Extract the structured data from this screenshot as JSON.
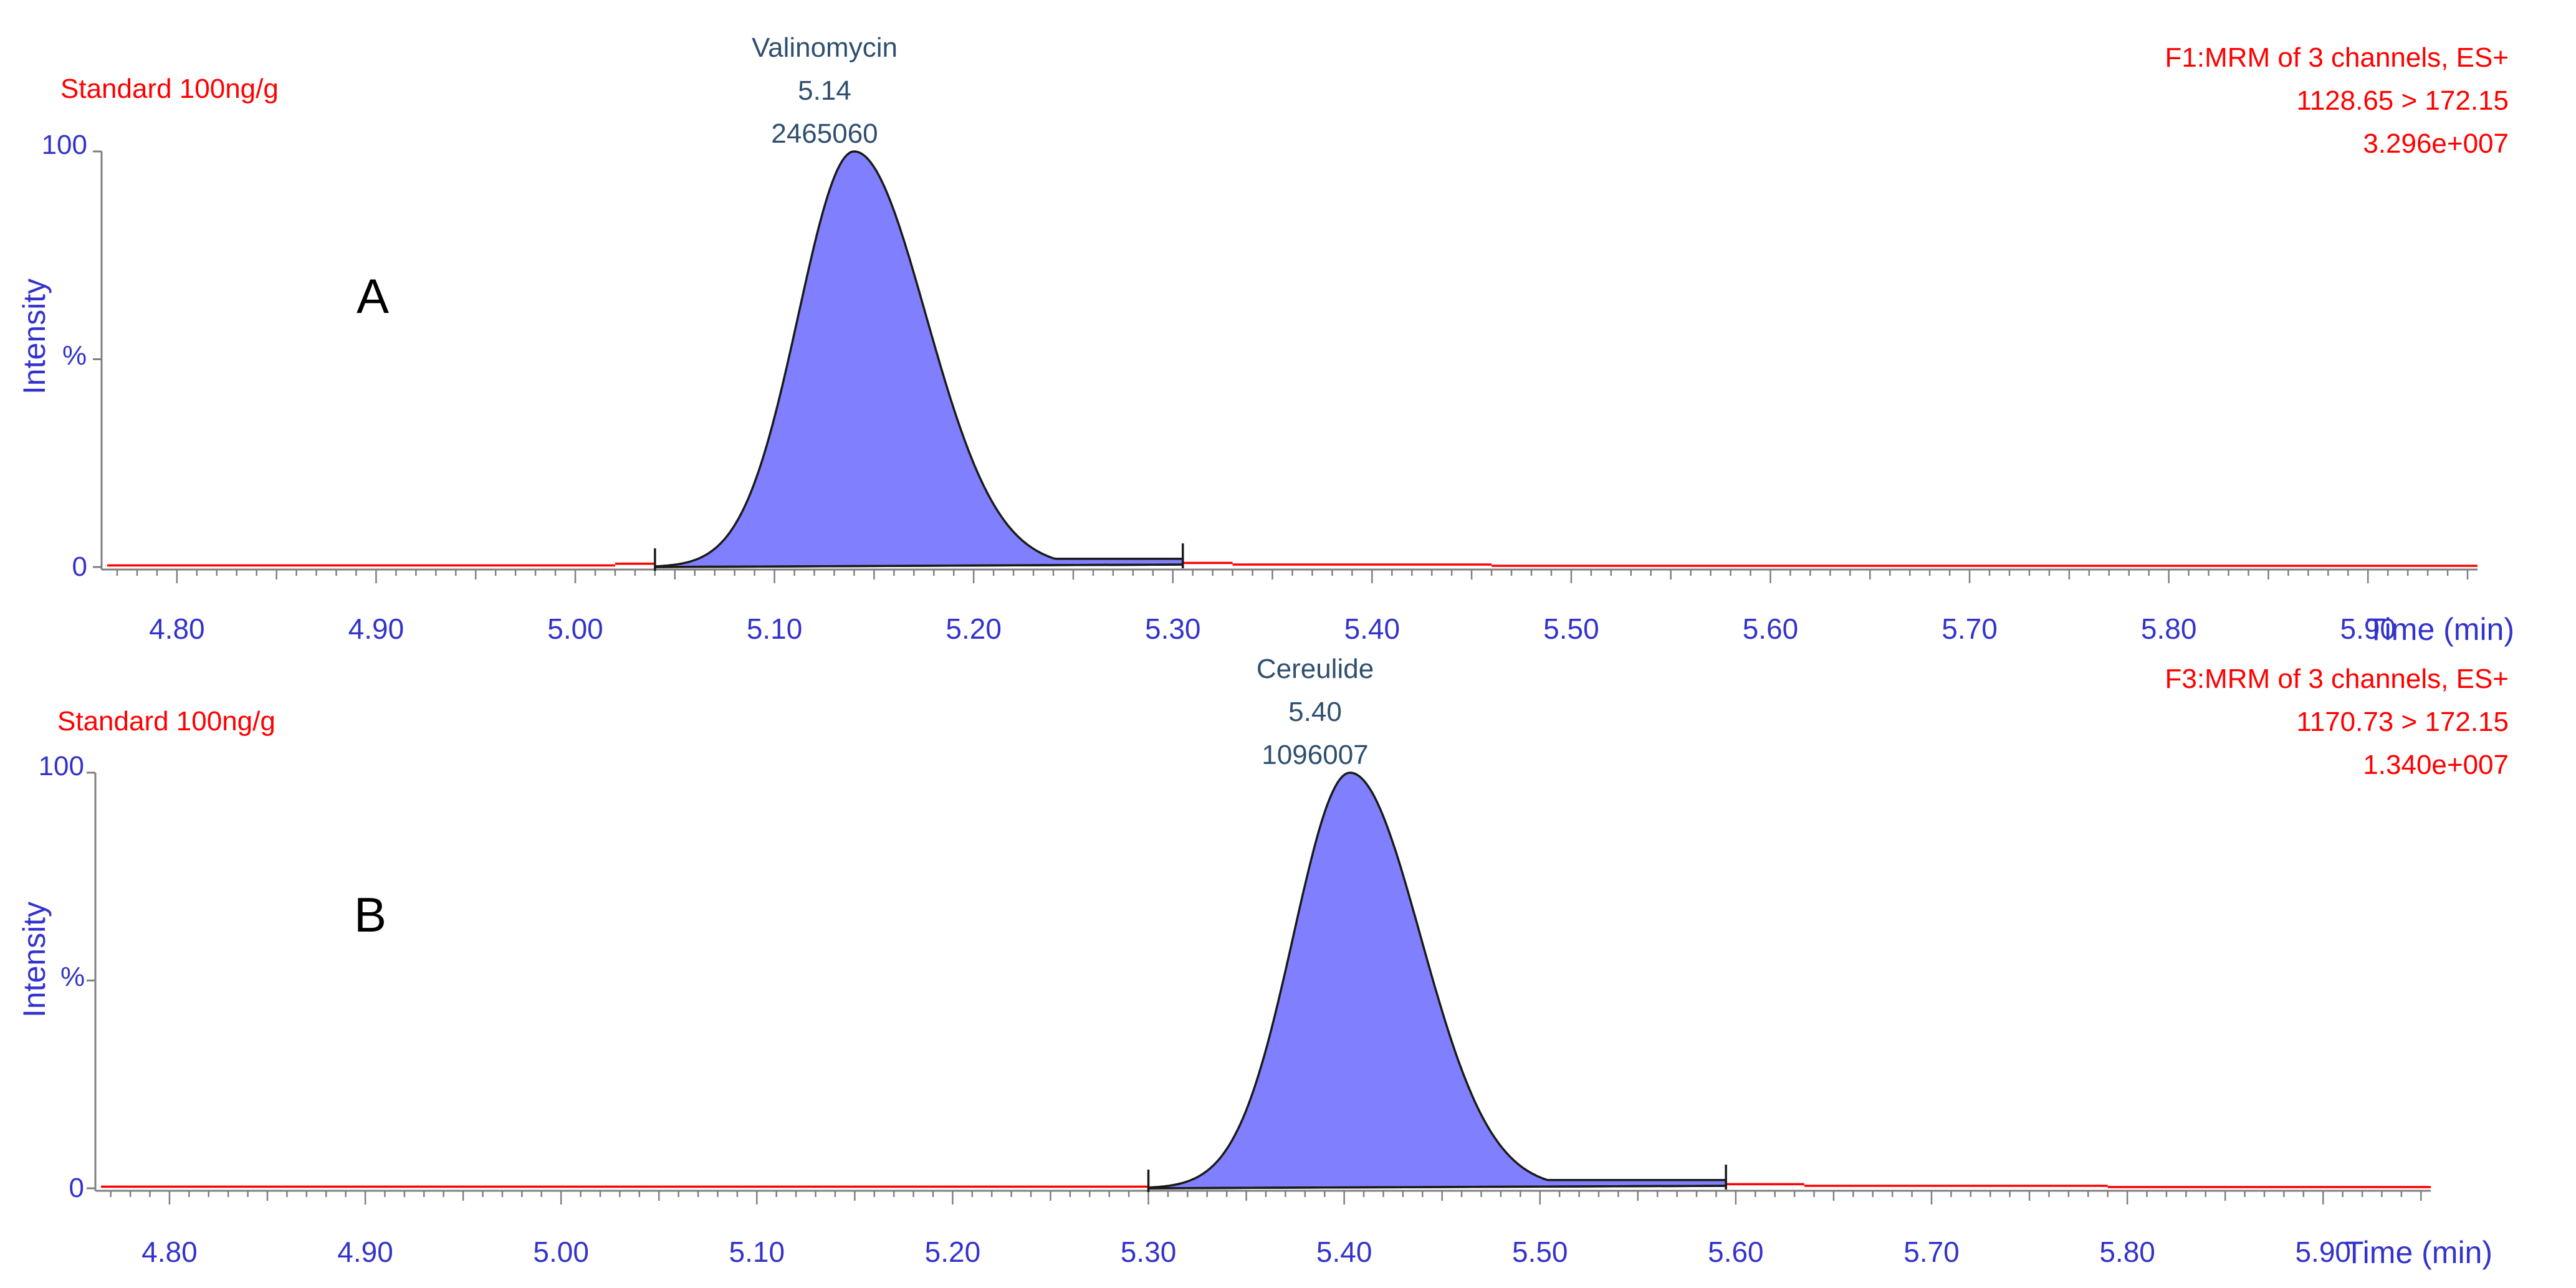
{
  "chart_data": [
    {
      "type": "area",
      "panel_letter": "A",
      "sample_label": "Standard 100ng/g",
      "function_line": "F1:MRM of 3 channels, ES+",
      "transition": "1128.65 > 172.15",
      "max_intensity": "3.296e+007",
      "ylabel": "Intensity",
      "y_percent_label": "%",
      "y_ticks": [
        "100",
        "0"
      ],
      "xlabel": "Time (min)",
      "x_ticks": [
        "4.80",
        "4.90",
        "5.00",
        "5.10",
        "5.20",
        "5.30",
        "5.40",
        "5.50",
        "5.60",
        "5.70",
        "5.80",
        "5.90"
      ],
      "xlim": [
        4.765,
        5.955
      ],
      "ylim": [
        0,
        100
      ],
      "peak": {
        "compound": "Valinomycin",
        "rt": "5.14",
        "area": "2465060",
        "apex": 5.14,
        "sigma_left": 0.028,
        "sigma_right": 0.036,
        "tail_tau": 0.05,
        "start": 5.04,
        "end": 5.305,
        "end_height": 2
      },
      "baseline_segments": [
        {
          "x1": 4.765,
          "x2": 5.02,
          "y": 0.4
        },
        {
          "x1": 5.02,
          "x2": 5.04,
          "y": 0.8
        },
        {
          "x1": 5.305,
          "x2": 5.33,
          "y": 1.0
        },
        {
          "x1": 5.33,
          "x2": 5.46,
          "y": 0.6
        },
        {
          "x1": 5.46,
          "x2": 5.955,
          "y": 0.3
        }
      ]
    },
    {
      "type": "area",
      "panel_letter": "B",
      "sample_label": "Standard 100ng/g",
      "function_line": "F3:MRM of 3 channels, ES+",
      "transition": "1170.73 > 172.15",
      "max_intensity": "1.340e+007",
      "ylabel": "Intensity",
      "y_percent_label": "%",
      "y_ticks": [
        "100",
        "0"
      ],
      "xlabel": "Time (min)",
      "x_ticks": [
        "4.80",
        "4.90",
        "5.00",
        "5.10",
        "5.20",
        "5.30",
        "5.40",
        "5.50",
        "5.60",
        "5.70",
        "5.80",
        "5.90"
      ],
      "xlim": [
        4.765,
        5.955
      ],
      "ylim": [
        0,
        100
      ],
      "peak": {
        "compound": "Cereulide",
        "rt": "5.40",
        "area": "1096007",
        "apex": 5.403,
        "sigma_left": 0.029,
        "sigma_right": 0.036,
        "tail_tau": 0.05,
        "start": 5.3,
        "end": 5.595,
        "end_height": 2
      },
      "baseline_segments": [
        {
          "x1": 4.765,
          "x2": 5.3,
          "y": 0.4
        },
        {
          "x1": 5.595,
          "x2": 5.635,
          "y": 1.0
        },
        {
          "x1": 5.635,
          "x2": 5.79,
          "y": 0.6
        },
        {
          "x1": 5.79,
          "x2": 5.955,
          "y": 0.3
        }
      ]
    }
  ],
  "colors": {
    "axis_text": "#3333cc",
    "red_text": "#ff0000",
    "peak_label": "#2f4f6f",
    "peak_fill": "#8080ff",
    "peak_line": "#1a1a1a",
    "axis_line": "#7f7f7f",
    "panel_letter": "#000000"
  }
}
